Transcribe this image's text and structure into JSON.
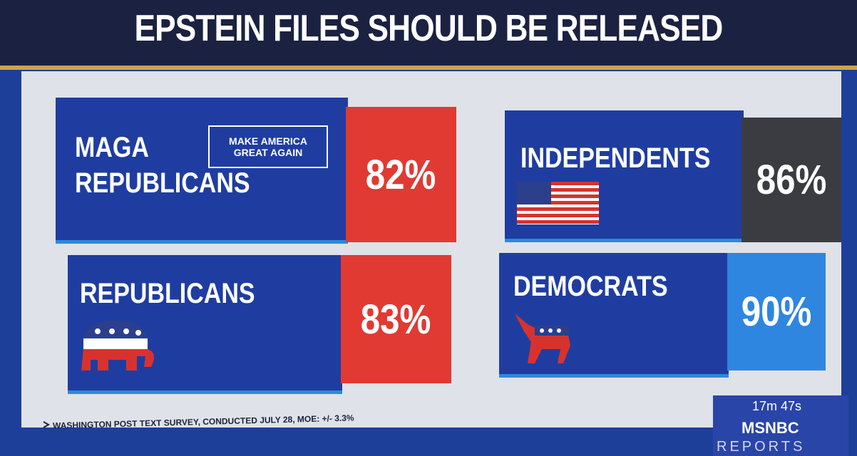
{
  "header": {
    "title": "EPSTEIN FILES SHOULD BE RELEASED"
  },
  "cards": [
    {
      "label_lines": [
        "MAGA",
        "REPUBLICANS"
      ],
      "badge": "MAKE AMERICA GREAT AGAIN",
      "value": "82%"
    },
    {
      "label_lines": [
        "INDEPENDENTS"
      ],
      "value": "86%"
    },
    {
      "label_lines": [
        "REPUBLICANS"
      ],
      "value": "83%"
    },
    {
      "label_lines": [
        "DEMOCRATS"
      ],
      "value": "90%"
    }
  ],
  "footer": {
    "source": "WASHINGTON POST TEXT SURVEY, CONDUCTED JULY 28, MOE: +/- 3.3%",
    "timer": "17m 47s",
    "network": "MSNBC",
    "show": "REPORTS"
  }
}
